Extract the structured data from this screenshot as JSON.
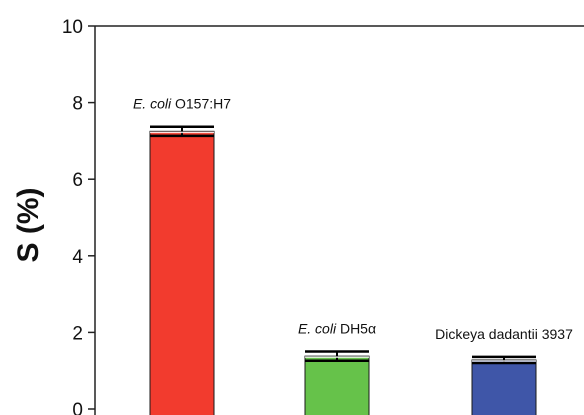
{
  "chart_data": {
    "type": "bar",
    "title": "",
    "xlabel": "",
    "ylabel": "S (%)",
    "ylim": [
      0,
      10
    ],
    "yticks": [
      "0",
      "2",
      "4",
      "6",
      "8",
      "10"
    ],
    "categories": [
      "E. coli O157:H7",
      "E. coli DH5α",
      "Dickeya dadantii 3937"
    ],
    "category_label_parts": [
      {
        "italic": "E. coli",
        "normal": "O157:H7"
      },
      {
        "italic": "E. coli",
        "normal": "DH5α"
      },
      {
        "italic": "",
        "normal": "Dickeya dadantii 3937"
      }
    ],
    "values": [
      7.25,
      1.38,
      1.28
    ],
    "errors": [
      0.12,
      0.12,
      0.08
    ],
    "colors": [
      "#f23b2e",
      "#66c24a",
      "#3f56a8"
    ],
    "grid": false,
    "legend": "none"
  }
}
